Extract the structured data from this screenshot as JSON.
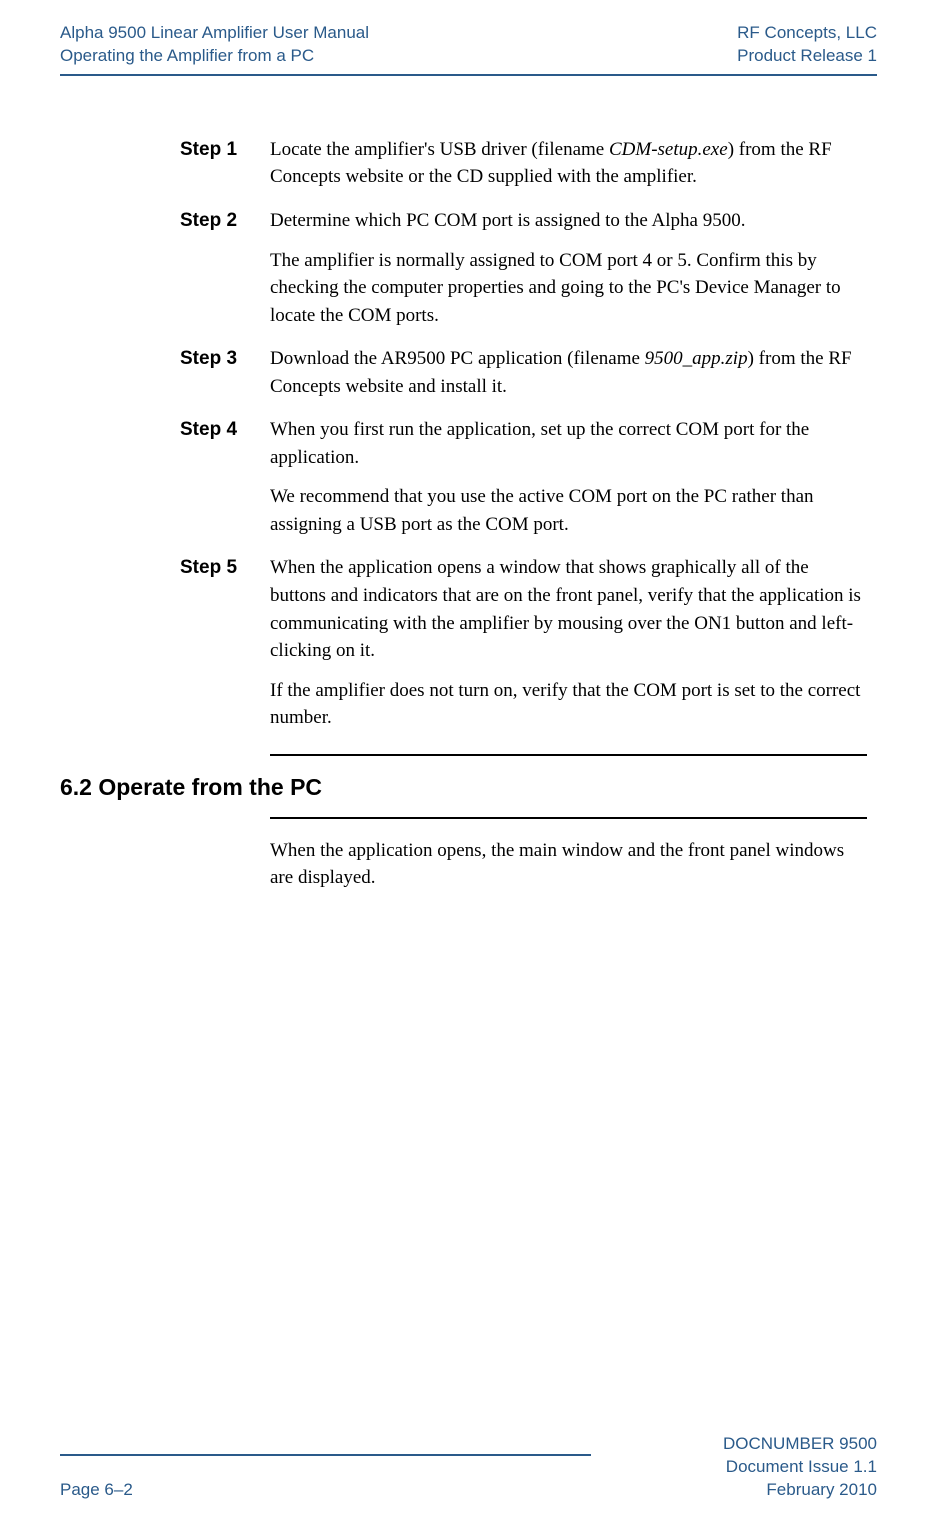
{
  "header": {
    "left_line1": "Alpha 9500 Linear Amplifier User Manual",
    "left_line2": "Operating the Amplifier from a PC",
    "right_line1": "RF Concepts, LLC",
    "right_line2": "Product Release 1"
  },
  "steps": {
    "s1": {
      "label": "Step 1",
      "p1a": "Locate the amplifier's USB driver (filename ",
      "p1b": "CDM-setup.exe",
      "p1c": ") from the RF Concepts website or the CD supplied with the amplifier."
    },
    "s2": {
      "label": "Step 2",
      "p1": "Determine which PC COM port is assigned to the Alpha 9500.",
      "p2": "The amplifier is normally assigned to COM port 4 or 5. Confirm this by checking the computer properties and going to the PC's Device Manager to locate the COM ports."
    },
    "s3": {
      "label": "Step 3",
      "p1a": "Download the AR9500 PC application (filename ",
      "p1b": "9500_app.zip",
      "p1c": ") from the RF Concepts website and install it."
    },
    "s4": {
      "label": "Step 4",
      "p1": "When you first run the application, set up the correct COM port for the application.",
      "p2": "We recommend that you use the active COM port on the PC rather than assigning a USB port as the COM port."
    },
    "s5": {
      "label": "Step 5",
      "p1": "When the application opens a window that shows graphically all of the buttons and indicators that are on the front panel, verify that the application is communicating with the amplifier by mousing over the ON1 button and left-clicking on it.",
      "p2": "If the amplifier does not turn on, verify that the COM port is set to the correct number."
    }
  },
  "section": {
    "heading": "6.2  Operate from the PC",
    "p1": "When the application opens, the main window and the front panel windows are displayed."
  },
  "footer": {
    "left": "Page 6–2",
    "right_line1": "DOCNUMBER 9500",
    "right_line2": "Document Issue 1.1",
    "right_line3": "February 2010"
  },
  "colors": {
    "brand": "#2a5a8a",
    "text": "#000000",
    "background": "#ffffff"
  }
}
